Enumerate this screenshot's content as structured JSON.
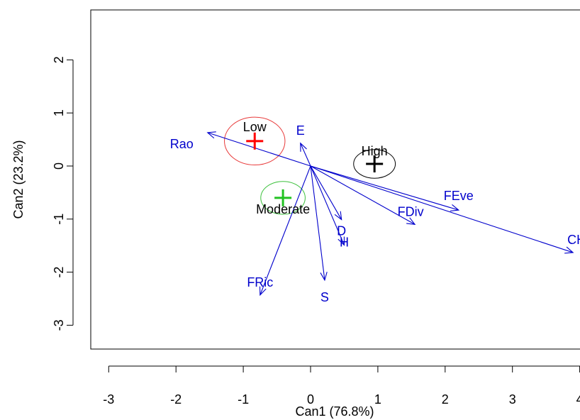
{
  "chart_data": {
    "type": "scatter",
    "title": "",
    "xlabel": "Can1 (76.8%)",
    "ylabel": "Can2 (23.2%)",
    "xlim": [
      -3.3,
      4.0
    ],
    "ylim": [
      -3.4,
      2.95
    ],
    "x_ticks": [
      -3,
      -2,
      -1,
      0,
      1,
      2,
      3,
      4
    ],
    "y_ticks": [
      -3,
      -2,
      -1,
      0,
      1,
      2
    ],
    "x_tick_labels": [
      "-3",
      "-2",
      "-1",
      "0",
      "1",
      "2",
      "3",
      "4"
    ],
    "y_tick_labels": [
      "-3",
      "-2",
      "-1",
      "0",
      "1",
      "2"
    ],
    "groups": [
      {
        "label": "Low",
        "x": -0.83,
        "y": 0.47,
        "color": "#ff0000",
        "circle_color": "#e83a3a",
        "circle_rx": 0.45,
        "circle_ry": 0.45
      },
      {
        "label": "High",
        "x": 0.95,
        "y": 0.04,
        "color": "#000000",
        "circle_color": "#000000",
        "circle_rx": 0.31,
        "circle_ry": 0.27
      },
      {
        "label": "Moderate",
        "x": -0.41,
        "y": -0.6,
        "color": "#22c222",
        "circle_color": "#3cc03c",
        "circle_rx": 0.33,
        "circle_ry": 0.31
      }
    ],
    "vectors": [
      {
        "label": "Rao",
        "x": -1.53,
        "y": 0.63
      },
      {
        "label": "E",
        "x": -0.15,
        "y": 0.43
      },
      {
        "label": "FEve",
        "x": 2.2,
        "y": -0.83
      },
      {
        "label": "FDiv",
        "x": 1.55,
        "y": -1.1
      },
      {
        "label": "CH",
        "x": 3.9,
        "y": -1.63
      },
      {
        "label": "D",
        "x": 0.46,
        "y": -1.01
      },
      {
        "label": "H",
        "x": 0.5,
        "y": -1.49
      },
      {
        "label": "S",
        "x": 0.21,
        "y": -2.15
      },
      {
        "label": "FRic",
        "x": -0.75,
        "y": -2.43
      }
    ],
    "vector_color": "#0000cc",
    "grid": false,
    "legend": "none"
  }
}
